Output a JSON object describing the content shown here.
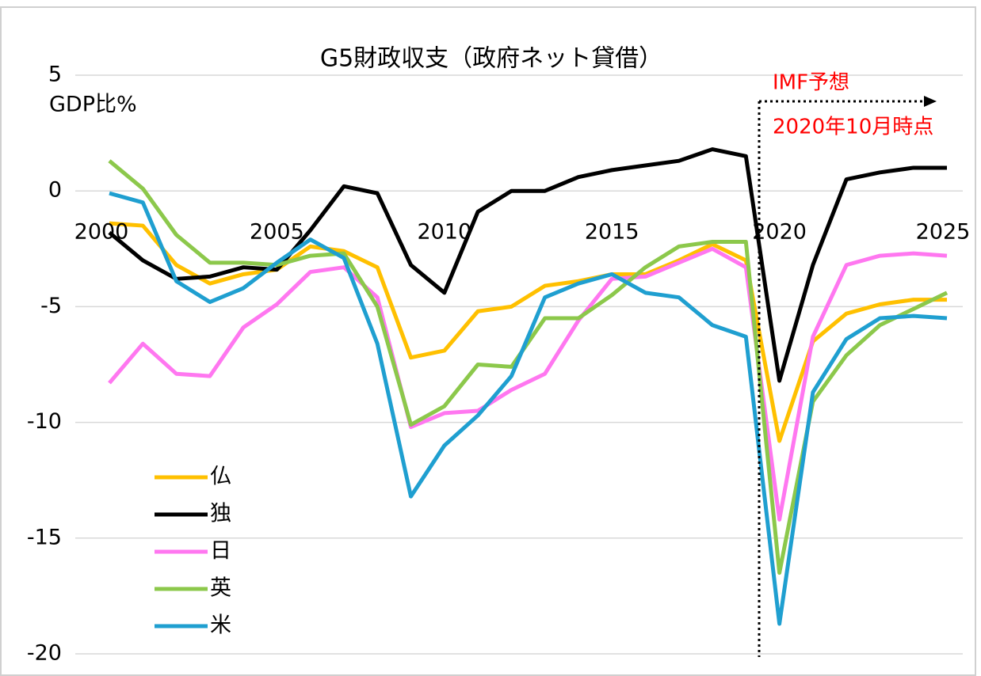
{
  "chart_data": {
    "type": "line",
    "title": "G5財政収支（政府ネット貸借）",
    "y_label": "GDP比%",
    "annotations": [
      "IMF予想",
      "2020年10月時点"
    ],
    "x": [
      2000,
      2001,
      2002,
      2003,
      2004,
      2005,
      2006,
      2007,
      2008,
      2009,
      2010,
      2011,
      2012,
      2013,
      2014,
      2015,
      2016,
      2017,
      2018,
      2019,
      2020,
      2021,
      2022,
      2023,
      2024,
      2025
    ],
    "xlim": [
      2000,
      2025
    ],
    "xticks": [
      2000,
      2005,
      2010,
      2015,
      2020,
      2025
    ],
    "ylim": [
      -20,
      5
    ],
    "yticks": [
      -20,
      -15,
      -10,
      -5,
      0,
      5
    ],
    "grid": true,
    "legend": "lower left",
    "series": [
      {
        "name": "仏",
        "color": "#ffc000",
        "values": [
          -1.4,
          -1.5,
          -3.2,
          -4.0,
          -3.6,
          -3.4,
          -2.4,
          -2.6,
          -3.3,
          -7.2,
          -6.9,
          -5.2,
          -5.0,
          -4.1,
          -3.9,
          -3.6,
          -3.6,
          -3.0,
          -2.3,
          -3.0,
          -10.8,
          -6.5,
          -5.3,
          -4.9,
          -4.7,
          -4.7
        ]
      },
      {
        "name": "独",
        "color": "#000000",
        "values": [
          -1.8,
          -3.0,
          -3.8,
          -3.7,
          -3.3,
          -3.4,
          -1.7,
          0.2,
          -0.1,
          -3.2,
          -4.4,
          -0.9,
          0.0,
          0.0,
          0.6,
          0.9,
          1.1,
          1.3,
          1.8,
          1.5,
          -8.2,
          -3.2,
          0.5,
          0.8,
          1.0,
          1.0
        ]
      },
      {
        "name": "日",
        "color": "#ff77f0",
        "values": [
          -8.3,
          -6.6,
          -7.9,
          -8.0,
          -5.9,
          -4.9,
          -3.5,
          -3.3,
          -4.6,
          -10.2,
          -9.6,
          -9.5,
          -8.6,
          -7.9,
          -5.6,
          -3.8,
          -3.7,
          -3.1,
          -2.5,
          -3.3,
          -14.2,
          -6.3,
          -3.2,
          -2.8,
          -2.7,
          -2.8
        ]
      },
      {
        "name": "英",
        "color": "#8cc84b",
        "values": [
          1.3,
          0.1,
          -1.9,
          -3.1,
          -3.1,
          -3.2,
          -2.8,
          -2.7,
          -5.0,
          -10.1,
          -9.3,
          -7.5,
          -7.6,
          -5.5,
          -5.5,
          -4.5,
          -3.3,
          -2.4,
          -2.2,
          -2.2,
          -16.5,
          -9.1,
          -7.1,
          -5.8,
          -5.1,
          -4.4
        ]
      },
      {
        "name": "米",
        "color": "#1f9fd0",
        "values": [
          -0.1,
          -0.5,
          -3.9,
          -4.8,
          -4.2,
          -3.1,
          -2.1,
          -2.9,
          -6.6,
          -13.2,
          -11.0,
          -9.7,
          -8.0,
          -4.6,
          -4.0,
          -3.6,
          -4.4,
          -4.6,
          -5.8,
          -6.3,
          -18.7,
          -8.7,
          -6.4,
          -5.5,
          -5.4,
          -5.5
        ]
      }
    ]
  }
}
